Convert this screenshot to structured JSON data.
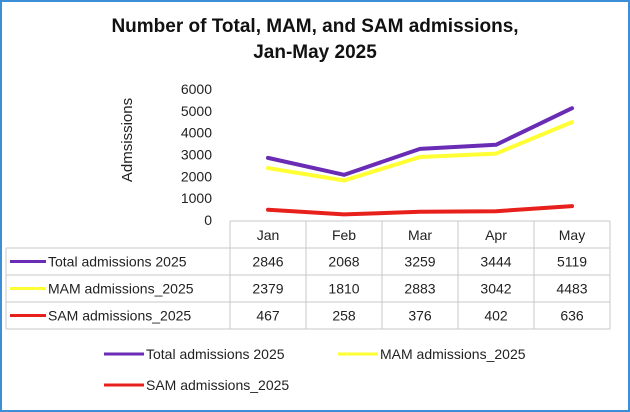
{
  "chart_data": {
    "type": "line",
    "title_line1": "Number of Total, MAM, and SAM admissions,",
    "title_line2": "Jan-May 2025",
    "ylabel": "Admsissions",
    "ylim": [
      0,
      6000
    ],
    "yticks": [
      "0",
      "1000",
      "2000",
      "3000",
      "4000",
      "5000",
      "6000"
    ],
    "categories": [
      "Jan",
      "Feb",
      "Mar",
      "Apr",
      "May"
    ],
    "grid": false,
    "data_table": true,
    "legend_position": "bottom",
    "series": [
      {
        "name": "Total admissions 2025",
        "color": "#6a2bb5",
        "values": [
          2846,
          2068,
          3259,
          3444,
          5119
        ],
        "labels": [
          "2846",
          "2068",
          "3259",
          "3444",
          "5119"
        ]
      },
      {
        "name": "MAM admissions_2025",
        "color": "#ffff33",
        "values": [
          2379,
          1810,
          2883,
          3042,
          4483
        ],
        "labels": [
          "2379",
          "1810",
          "2883",
          "3042",
          "4483"
        ]
      },
      {
        "name": "SAM admissions_2025",
        "color": "#e8201c",
        "values": [
          467,
          258,
          376,
          402,
          636
        ],
        "labels": [
          "467",
          "258",
          "376",
          "402",
          "636"
        ]
      }
    ]
  }
}
